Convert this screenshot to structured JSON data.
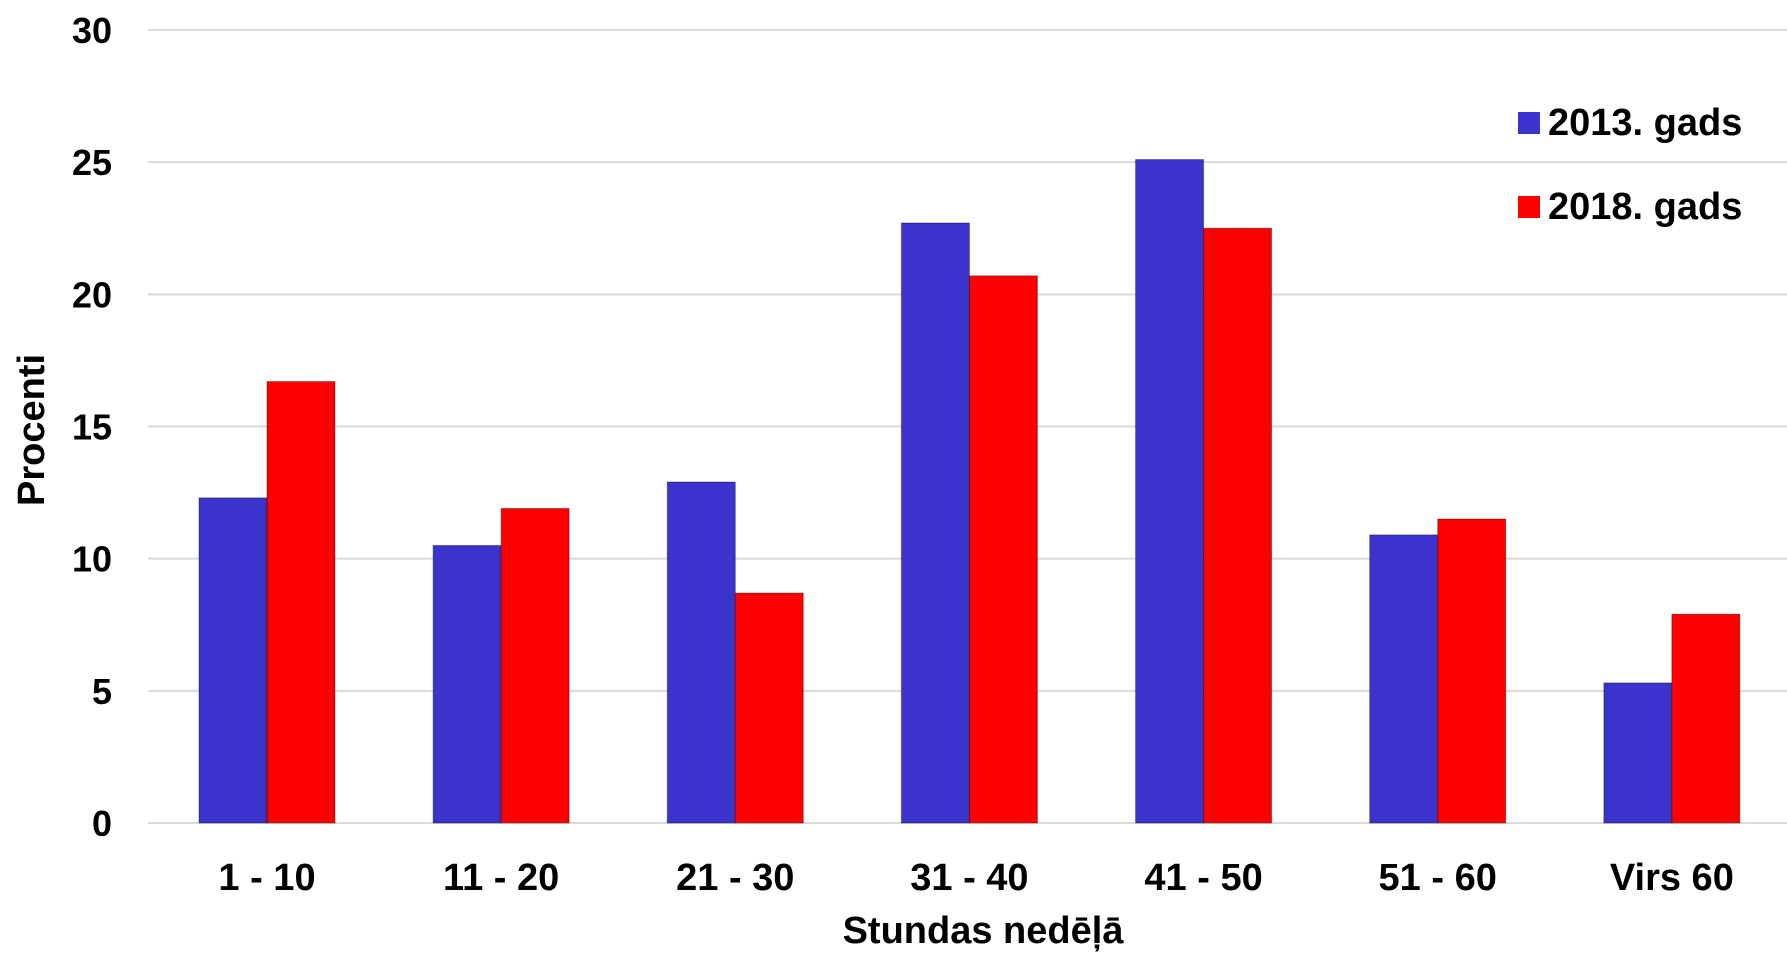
{
  "chart_data": {
    "type": "bar",
    "categories": [
      "1 - 10",
      "11 - 20",
      "21 - 30",
      "31 - 40",
      "41 - 50",
      "51 - 60",
      "Virs 60"
    ],
    "series": [
      {
        "name": "2013. gads",
        "color": "#3A33CC",
        "values": [
          12.3,
          10.5,
          12.9,
          22.7,
          25.1,
          10.9,
          5.3
        ]
      },
      {
        "name": "2018. gads",
        "color": "#FF0000",
        "values": [
          16.7,
          11.9,
          8.7,
          20.7,
          22.5,
          11.5,
          7.9
        ]
      }
    ],
    "xlabel": "Stundas nedēļā",
    "ylabel": "Procenti",
    "ylim": [
      0,
      30
    ],
    "yticks": [
      0,
      5,
      10,
      15,
      20,
      25,
      30
    ],
    "grid": true,
    "legend_position": "top-right"
  }
}
